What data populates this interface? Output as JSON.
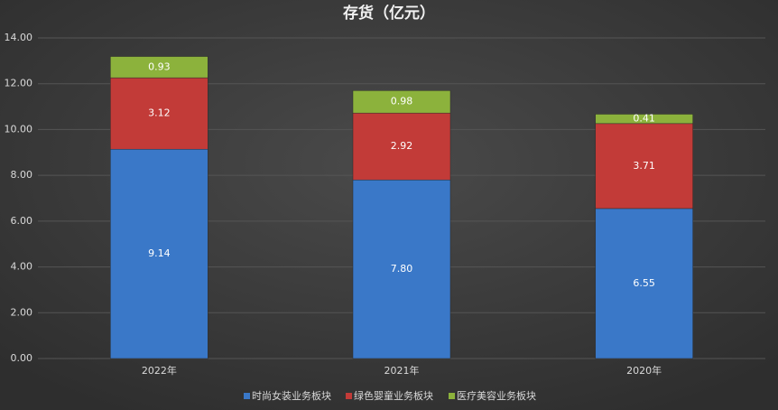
{
  "chart_data": {
    "type": "stacked_bar",
    "title": "存货（亿元）",
    "categories": [
      "2022年",
      "2021年",
      "2020年"
    ],
    "series": [
      {
        "name": "时尚女装业务板块",
        "color": "#3a78c8",
        "values": [
          9.14,
          7.8,
          6.55
        ],
        "value_labels": [
          "9.14",
          "7.80",
          "6.55"
        ]
      },
      {
        "name": "绿色婴童业务板块",
        "color": "#c23b38",
        "values": [
          3.12,
          2.92,
          3.71
        ],
        "value_labels": [
          "3.12",
          "2.92",
          "3.71"
        ]
      },
      {
        "name": "医疗美容业务板块",
        "color": "#8cb23c",
        "values": [
          0.93,
          0.98,
          0.41
        ],
        "value_labels": [
          "0.93",
          "0.98",
          "0.41"
        ]
      }
    ],
    "ylim": [
      0,
      14
    ],
    "yticks": [
      {
        "value": 0,
        "label": "0.00"
      },
      {
        "value": 2,
        "label": "2.00"
      },
      {
        "value": 4,
        "label": "4.00"
      },
      {
        "value": 6,
        "label": "6.00"
      },
      {
        "value": 8,
        "label": "8.00"
      },
      {
        "value": 10,
        "label": "10.00"
      },
      {
        "value": 12,
        "label": "12.00"
      },
      {
        "value": 14,
        "label": "14.00"
      }
    ],
    "grid": true,
    "legend": "bottom"
  }
}
